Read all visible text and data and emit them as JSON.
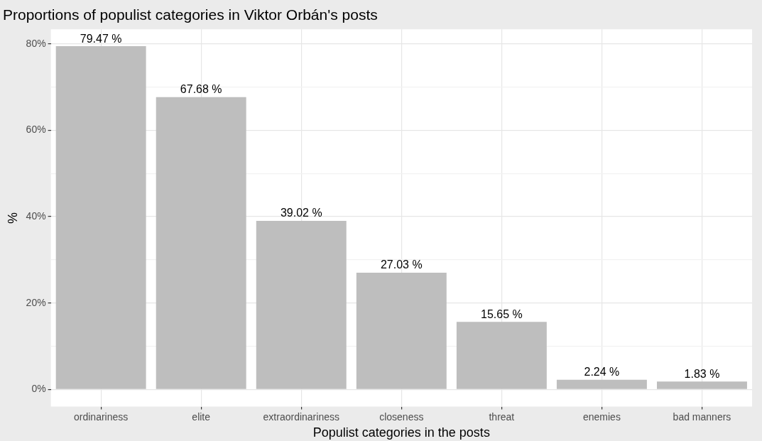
{
  "chart_data": {
    "type": "bar",
    "title": "Proportions of populist categories in Viktor Orbán's posts",
    "xlabel": "Populist categories in the posts",
    "ylabel": "%",
    "categories": [
      "ordinariness",
      "elite",
      "extraordinariness",
      "closeness",
      "threat",
      "enemies",
      "bad manners"
    ],
    "values": [
      79.47,
      67.68,
      39.02,
      27.03,
      15.65,
      2.24,
      1.83
    ],
    "value_labels": [
      "79.47 %",
      "67.68 %",
      "39.02 %",
      "27.03 %",
      "15.65 %",
      "2.24 %",
      "1.83 %"
    ],
    "color": "#bebebe",
    "ylim": [
      -4,
      83.4
    ],
    "yticks": [
      {
        "value": 0,
        "label": "0%"
      },
      {
        "value": 10,
        "label": null
      },
      {
        "value": 20,
        "label": "20%"
      },
      {
        "value": 30,
        "label": null
      },
      {
        "value": 40,
        "label": "40%"
      },
      {
        "value": 50,
        "label": null
      },
      {
        "value": 60,
        "label": "60%"
      },
      {
        "value": 70,
        "label": null
      },
      {
        "value": 80,
        "label": "80%"
      }
    ],
    "grid": true
  }
}
